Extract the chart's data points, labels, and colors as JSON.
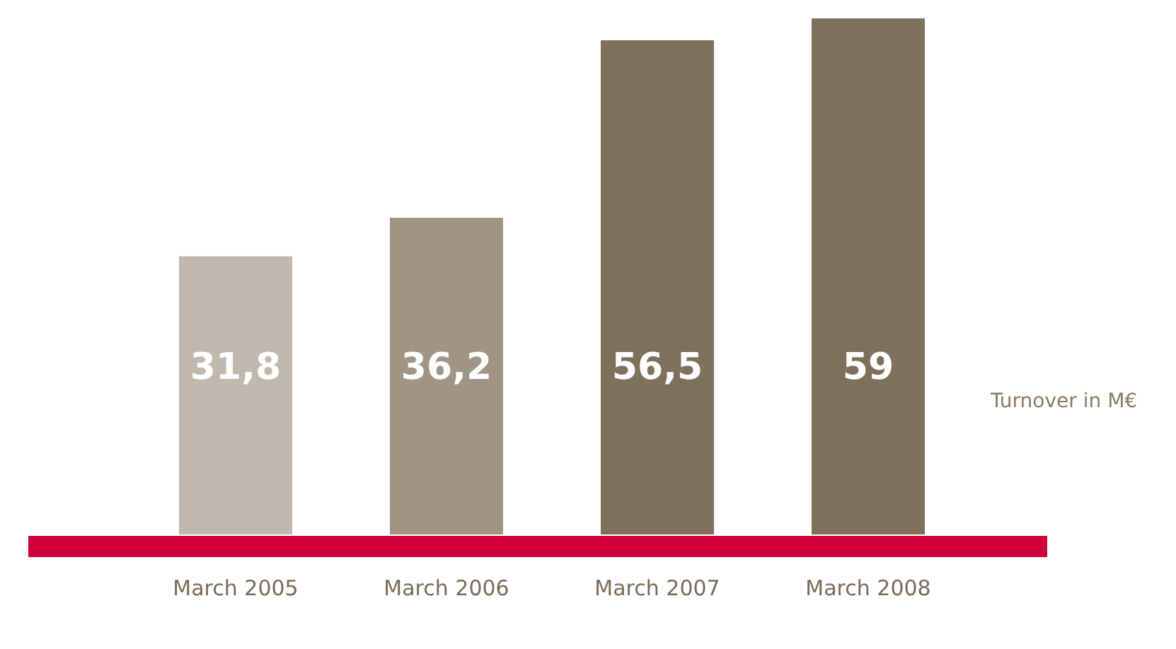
{
  "chart_data": {
    "type": "bar",
    "categories": [
      "March 2005",
      "March 2006",
      "March 2007",
      "March 2008"
    ],
    "values": [
      31.8,
      36.2,
      56.5,
      59
    ],
    "value_labels": [
      "31,8",
      "36,2",
      "56,5",
      "59"
    ],
    "colors": [
      "#c0b8ae",
      "#a09585",
      "#7f705c",
      "#7f705c"
    ],
    "grid": false,
    "legend": false,
    "annotations": [
      "Turnover in M€"
    ]
  }
}
